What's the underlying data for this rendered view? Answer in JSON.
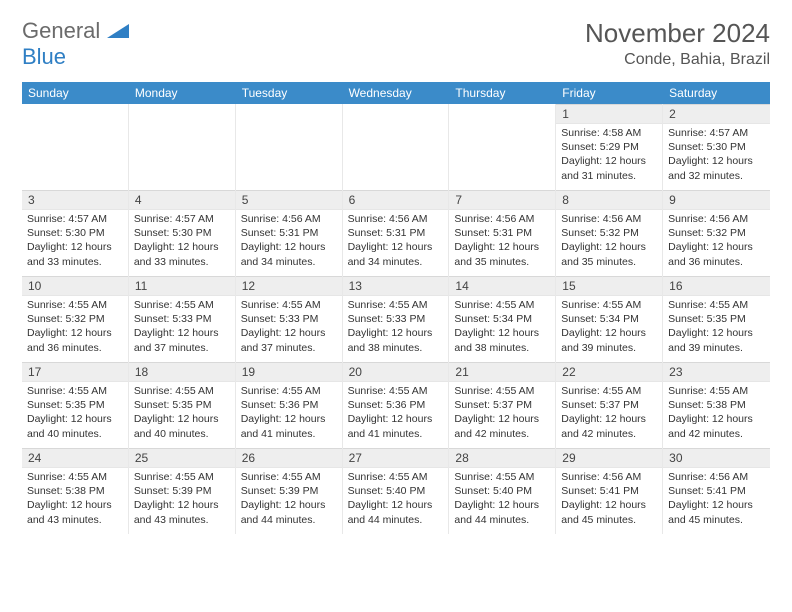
{
  "logo": {
    "word1": "General",
    "word2": "Blue",
    "accent_color": "#2f7fc4",
    "gray_color": "#6b6b6b"
  },
  "header": {
    "title": "November 2024",
    "location": "Conde, Bahia, Brazil"
  },
  "colors": {
    "header_bar": "#3b8bc9",
    "daynum_bg": "#eeeeee"
  },
  "weekdays": [
    "Sunday",
    "Monday",
    "Tuesday",
    "Wednesday",
    "Thursday",
    "Friday",
    "Saturday"
  ],
  "weeks": [
    [
      {
        "n": "",
        "sr": "",
        "ss": "",
        "dl": ""
      },
      {
        "n": "",
        "sr": "",
        "ss": "",
        "dl": ""
      },
      {
        "n": "",
        "sr": "",
        "ss": "",
        "dl": ""
      },
      {
        "n": "",
        "sr": "",
        "ss": "",
        "dl": ""
      },
      {
        "n": "",
        "sr": "",
        "ss": "",
        "dl": ""
      },
      {
        "n": "1",
        "sr": "Sunrise: 4:58 AM",
        "ss": "Sunset: 5:29 PM",
        "dl": "Daylight: 12 hours and 31 minutes."
      },
      {
        "n": "2",
        "sr": "Sunrise: 4:57 AM",
        "ss": "Sunset: 5:30 PM",
        "dl": "Daylight: 12 hours and 32 minutes."
      }
    ],
    [
      {
        "n": "3",
        "sr": "Sunrise: 4:57 AM",
        "ss": "Sunset: 5:30 PM",
        "dl": "Daylight: 12 hours and 33 minutes."
      },
      {
        "n": "4",
        "sr": "Sunrise: 4:57 AM",
        "ss": "Sunset: 5:30 PM",
        "dl": "Daylight: 12 hours and 33 minutes."
      },
      {
        "n": "5",
        "sr": "Sunrise: 4:56 AM",
        "ss": "Sunset: 5:31 PM",
        "dl": "Daylight: 12 hours and 34 minutes."
      },
      {
        "n": "6",
        "sr": "Sunrise: 4:56 AM",
        "ss": "Sunset: 5:31 PM",
        "dl": "Daylight: 12 hours and 34 minutes."
      },
      {
        "n": "7",
        "sr": "Sunrise: 4:56 AM",
        "ss": "Sunset: 5:31 PM",
        "dl": "Daylight: 12 hours and 35 minutes."
      },
      {
        "n": "8",
        "sr": "Sunrise: 4:56 AM",
        "ss": "Sunset: 5:32 PM",
        "dl": "Daylight: 12 hours and 35 minutes."
      },
      {
        "n": "9",
        "sr": "Sunrise: 4:56 AM",
        "ss": "Sunset: 5:32 PM",
        "dl": "Daylight: 12 hours and 36 minutes."
      }
    ],
    [
      {
        "n": "10",
        "sr": "Sunrise: 4:55 AM",
        "ss": "Sunset: 5:32 PM",
        "dl": "Daylight: 12 hours and 36 minutes."
      },
      {
        "n": "11",
        "sr": "Sunrise: 4:55 AM",
        "ss": "Sunset: 5:33 PM",
        "dl": "Daylight: 12 hours and 37 minutes."
      },
      {
        "n": "12",
        "sr": "Sunrise: 4:55 AM",
        "ss": "Sunset: 5:33 PM",
        "dl": "Daylight: 12 hours and 37 minutes."
      },
      {
        "n": "13",
        "sr": "Sunrise: 4:55 AM",
        "ss": "Sunset: 5:33 PM",
        "dl": "Daylight: 12 hours and 38 minutes."
      },
      {
        "n": "14",
        "sr": "Sunrise: 4:55 AM",
        "ss": "Sunset: 5:34 PM",
        "dl": "Daylight: 12 hours and 38 minutes."
      },
      {
        "n": "15",
        "sr": "Sunrise: 4:55 AM",
        "ss": "Sunset: 5:34 PM",
        "dl": "Daylight: 12 hours and 39 minutes."
      },
      {
        "n": "16",
        "sr": "Sunrise: 4:55 AM",
        "ss": "Sunset: 5:35 PM",
        "dl": "Daylight: 12 hours and 39 minutes."
      }
    ],
    [
      {
        "n": "17",
        "sr": "Sunrise: 4:55 AM",
        "ss": "Sunset: 5:35 PM",
        "dl": "Daylight: 12 hours and 40 minutes."
      },
      {
        "n": "18",
        "sr": "Sunrise: 4:55 AM",
        "ss": "Sunset: 5:35 PM",
        "dl": "Daylight: 12 hours and 40 minutes."
      },
      {
        "n": "19",
        "sr": "Sunrise: 4:55 AM",
        "ss": "Sunset: 5:36 PM",
        "dl": "Daylight: 12 hours and 41 minutes."
      },
      {
        "n": "20",
        "sr": "Sunrise: 4:55 AM",
        "ss": "Sunset: 5:36 PM",
        "dl": "Daylight: 12 hours and 41 minutes."
      },
      {
        "n": "21",
        "sr": "Sunrise: 4:55 AM",
        "ss": "Sunset: 5:37 PM",
        "dl": "Daylight: 12 hours and 42 minutes."
      },
      {
        "n": "22",
        "sr": "Sunrise: 4:55 AM",
        "ss": "Sunset: 5:37 PM",
        "dl": "Daylight: 12 hours and 42 minutes."
      },
      {
        "n": "23",
        "sr": "Sunrise: 4:55 AM",
        "ss": "Sunset: 5:38 PM",
        "dl": "Daylight: 12 hours and 42 minutes."
      }
    ],
    [
      {
        "n": "24",
        "sr": "Sunrise: 4:55 AM",
        "ss": "Sunset: 5:38 PM",
        "dl": "Daylight: 12 hours and 43 minutes."
      },
      {
        "n": "25",
        "sr": "Sunrise: 4:55 AM",
        "ss": "Sunset: 5:39 PM",
        "dl": "Daylight: 12 hours and 43 minutes."
      },
      {
        "n": "26",
        "sr": "Sunrise: 4:55 AM",
        "ss": "Sunset: 5:39 PM",
        "dl": "Daylight: 12 hours and 44 minutes."
      },
      {
        "n": "27",
        "sr": "Sunrise: 4:55 AM",
        "ss": "Sunset: 5:40 PM",
        "dl": "Daylight: 12 hours and 44 minutes."
      },
      {
        "n": "28",
        "sr": "Sunrise: 4:55 AM",
        "ss": "Sunset: 5:40 PM",
        "dl": "Daylight: 12 hours and 44 minutes."
      },
      {
        "n": "29",
        "sr": "Sunrise: 4:56 AM",
        "ss": "Sunset: 5:41 PM",
        "dl": "Daylight: 12 hours and 45 minutes."
      },
      {
        "n": "30",
        "sr": "Sunrise: 4:56 AM",
        "ss": "Sunset: 5:41 PM",
        "dl": "Daylight: 12 hours and 45 minutes."
      }
    ]
  ]
}
